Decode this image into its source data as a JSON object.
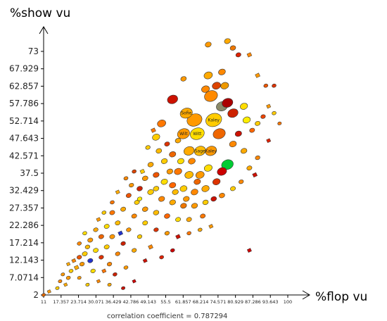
{
  "chart_data": {
    "type": "scatter",
    "xlabel": "%flop vu",
    "ylabel": "%show vu",
    "xlim": [
      11,
      104
    ],
    "ylim": [
      2,
      80
    ],
    "x_ticks": [
      "11",
      "17.357",
      "23.714",
      "30.071",
      "36.429",
      "42.786",
      "49.143",
      "55.5",
      "61.857",
      "68.214",
      "74.571",
      "80.929",
      "87.286",
      "93.643",
      "100"
    ],
    "y_ticks": [
      "2",
      "7.0714",
      "12.143",
      "17.214",
      "22.286",
      "27.357",
      "32.429",
      "37.5",
      "42.571",
      "47.643",
      "52.714",
      "57.786",
      "62.857",
      "67.929",
      "73"
    ],
    "annotation": "correlation coefficient = 0.787294",
    "colors": {
      "low": "#cc0000",
      "mid": "#ff8800",
      "high": "#ffee00",
      "green": "#00cc33",
      "blue": "#2233cc",
      "gray": "#8a8a6a"
    },
    "point_labels": [
      "Sofie",
      "Kaley",
      "Witt",
      "Sage",
      "Kaley",
      "Wilt"
    ],
    "points": [
      {
        "x": 66,
        "y": 53,
        "s": 3.2,
        "c": "#ff9900"
      },
      {
        "x": 72,
        "y": 60,
        "s": 2.8,
        "c": "#ff8a00"
      },
      {
        "x": 73,
        "y": 53,
        "s": 3.4,
        "c": "#ffcc00",
        "label": "Kaley"
      },
      {
        "x": 67,
        "y": 49,
        "s": 3.0,
        "c": "#ffdd00",
        "label": "Witt"
      },
      {
        "x": 62,
        "y": 49,
        "s": 2.6,
        "c": "#ff9900",
        "label": "Wilt"
      },
      {
        "x": 63,
        "y": 55,
        "s": 2.6,
        "c": "#ffaa00",
        "label": "Sofie"
      },
      {
        "x": 76,
        "y": 57,
        "s": 2.4,
        "c": "#8a8a6a"
      },
      {
        "x": 78,
        "y": 58,
        "s": 2.3,
        "c": "#aa0000"
      },
      {
        "x": 80,
        "y": 55,
        "s": 2.2,
        "c": "#cc2200"
      },
      {
        "x": 75,
        "y": 49,
        "s": 2.6,
        "c": "#ee6600"
      },
      {
        "x": 68,
        "y": 44,
        "s": 2.4,
        "c": "#ffbb00",
        "label": "Sage"
      },
      {
        "x": 72,
        "y": 44,
        "s": 2.4,
        "c": "#ff9900",
        "label": "Kaley"
      },
      {
        "x": 64,
        "y": 44,
        "s": 2.2,
        "c": "#ffaa00"
      },
      {
        "x": 78,
        "y": 40,
        "s": 2.5,
        "c": "#00cc33"
      },
      {
        "x": 76,
        "y": 38,
        "s": 2.0,
        "c": "#cc0000"
      },
      {
        "x": 58,
        "y": 59,
        "s": 2.2,
        "c": "#cc1100"
      },
      {
        "x": 54,
        "y": 52,
        "s": 1.8,
        "c": "#ff7700"
      },
      {
        "x": 52,
        "y": 48,
        "s": 1.6,
        "c": "#ffcc00"
      },
      {
        "x": 71,
        "y": 66,
        "s": 1.8,
        "c": "#ffaa00"
      },
      {
        "x": 74,
        "y": 63,
        "s": 1.8,
        "c": "#dd4400"
      },
      {
        "x": 70,
        "y": 62,
        "s": 1.7,
        "c": "#ff8800"
      },
      {
        "x": 77,
        "y": 63,
        "s": 1.7,
        "c": "#ee9900"
      },
      {
        "x": 76,
        "y": 67,
        "s": 1.5,
        "c": "#ff8800"
      },
      {
        "x": 71,
        "y": 75,
        "s": 1.3,
        "c": "#ff9900"
      },
      {
        "x": 78,
        "y": 76,
        "s": 1.3,
        "c": "#ffaa00"
      },
      {
        "x": 80,
        "y": 74,
        "s": 1.2,
        "c": "#ee7700"
      },
      {
        "x": 82,
        "y": 72,
        "s": 1.1,
        "c": "#dd2200"
      },
      {
        "x": 86,
        "y": 72,
        "s": 1.0,
        "c": "#ff8800"
      },
      {
        "x": 84,
        "y": 57,
        "s": 1.6,
        "c": "#ffdd00"
      },
      {
        "x": 85,
        "y": 53,
        "s": 1.6,
        "c": "#ffee00"
      },
      {
        "x": 82,
        "y": 49,
        "s": 1.4,
        "c": "#cc1100"
      },
      {
        "x": 80,
        "y": 46,
        "s": 1.5,
        "c": "#ff8800"
      },
      {
        "x": 84,
        "y": 44,
        "s": 1.3,
        "c": "#ffaa00"
      },
      {
        "x": 87,
        "y": 50,
        "s": 1.1,
        "c": "#ff6600"
      },
      {
        "x": 89,
        "y": 52,
        "s": 1.1,
        "c": "#ffcc00"
      },
      {
        "x": 91,
        "y": 54,
        "s": 1.0,
        "c": "#ee4400"
      },
      {
        "x": 93,
        "y": 57,
        "s": 0.9,
        "c": "#ff9900"
      },
      {
        "x": 95,
        "y": 55,
        "s": 0.9,
        "c": "#ffcc00"
      },
      {
        "x": 92,
        "y": 63,
        "s": 0.9,
        "c": "#ee5500"
      },
      {
        "x": 89,
        "y": 66,
        "s": 1.0,
        "c": "#ff9900"
      },
      {
        "x": 95,
        "y": 63,
        "s": 0.9,
        "c": "#dd3300"
      },
      {
        "x": 97,
        "y": 52,
        "s": 0.8,
        "c": "#ff7700"
      },
      {
        "x": 93,
        "y": 47,
        "s": 0.9,
        "c": "#dd2200"
      },
      {
        "x": 89,
        "y": 42,
        "s": 1.0,
        "c": "#ff8800"
      },
      {
        "x": 86,
        "y": 39,
        "s": 1.1,
        "c": "#ffaa00"
      },
      {
        "x": 88,
        "y": 37,
        "s": 1.0,
        "c": "#cc1100"
      },
      {
        "x": 83,
        "y": 35,
        "s": 1.0,
        "c": "#ff8800"
      },
      {
        "x": 80,
        "y": 33,
        "s": 1.1,
        "c": "#ffcc00"
      },
      {
        "x": 86,
        "y": 15,
        "s": 0.9,
        "c": "#cc0000"
      },
      {
        "x": 62,
        "y": 65,
        "s": 1.2,
        "c": "#ff9900"
      },
      {
        "x": 58,
        "y": 43,
        "s": 1.4,
        "c": "#ee6600"
      },
      {
        "x": 55,
        "y": 41,
        "s": 1.3,
        "c": "#ffcc00"
      },
      {
        "x": 60,
        "y": 38,
        "s": 1.6,
        "c": "#ff7700"
      },
      {
        "x": 64,
        "y": 37,
        "s": 1.8,
        "c": "#ffbb00"
      },
      {
        "x": 68,
        "y": 37,
        "s": 1.8,
        "c": "#ff9900"
      },
      {
        "x": 71,
        "y": 39,
        "s": 1.7,
        "c": "#ffdd00"
      },
      {
        "x": 74,
        "y": 35,
        "s": 1.6,
        "c": "#dd3300"
      },
      {
        "x": 70,
        "y": 33,
        "s": 1.6,
        "c": "#ffaa00"
      },
      {
        "x": 66,
        "y": 32,
        "s": 1.5,
        "c": "#ff8800"
      },
      {
        "x": 62,
        "y": 33,
        "s": 1.5,
        "c": "#ffcc00"
      },
      {
        "x": 58,
        "y": 34,
        "s": 1.4,
        "c": "#ff6600"
      },
      {
        "x": 55,
        "y": 35,
        "s": 1.4,
        "c": "#ffdd00"
      },
      {
        "x": 52,
        "y": 37,
        "s": 1.3,
        "c": "#ee5500"
      },
      {
        "x": 50,
        "y": 40,
        "s": 1.2,
        "c": "#ffaa00"
      },
      {
        "x": 48,
        "y": 36,
        "s": 1.2,
        "c": "#ff9900"
      },
      {
        "x": 46,
        "y": 33,
        "s": 1.2,
        "c": "#cc2200"
      },
      {
        "x": 50,
        "y": 32,
        "s": 1.3,
        "c": "#ffcc00"
      },
      {
        "x": 54,
        "y": 30,
        "s": 1.3,
        "c": "#ff8800"
      },
      {
        "x": 58,
        "y": 29,
        "s": 1.3,
        "c": "#ffaa00"
      },
      {
        "x": 62,
        "y": 28,
        "s": 1.3,
        "c": "#ee7700"
      },
      {
        "x": 66,
        "y": 28,
        "s": 1.3,
        "c": "#ff9900"
      },
      {
        "x": 70,
        "y": 29,
        "s": 1.2,
        "c": "#ffcc00"
      },
      {
        "x": 73,
        "y": 30,
        "s": 1.2,
        "c": "#cc1100"
      },
      {
        "x": 76,
        "y": 31,
        "s": 1.2,
        "c": "#ff8800"
      },
      {
        "x": 69,
        "y": 25,
        "s": 1.1,
        "c": "#ff7700"
      },
      {
        "x": 64,
        "y": 24,
        "s": 1.1,
        "c": "#ffaa00"
      },
      {
        "x": 60,
        "y": 24,
        "s": 1.1,
        "c": "#ffdd00"
      },
      {
        "x": 56,
        "y": 25,
        "s": 1.2,
        "c": "#ff6600"
      },
      {
        "x": 52,
        "y": 26,
        "s": 1.2,
        "c": "#ffbb00"
      },
      {
        "x": 48,
        "y": 27,
        "s": 1.2,
        "c": "#ff9900"
      },
      {
        "x": 45,
        "y": 29,
        "s": 1.1,
        "c": "#ffcc00"
      },
      {
        "x": 42,
        "y": 31,
        "s": 1.1,
        "c": "#ee5500"
      },
      {
        "x": 40,
        "y": 27,
        "s": 1.1,
        "c": "#ffaa00"
      },
      {
        "x": 44,
        "y": 25,
        "s": 1.1,
        "c": "#ff8800"
      },
      {
        "x": 48,
        "y": 23,
        "s": 1.1,
        "c": "#ffcc00"
      },
      {
        "x": 52,
        "y": 21,
        "s": 1.0,
        "c": "#dd3300"
      },
      {
        "x": 56,
        "y": 20,
        "s": 1.0,
        "c": "#ff9900"
      },
      {
        "x": 60,
        "y": 19,
        "s": 1.0,
        "c": "#cc1100"
      },
      {
        "x": 64,
        "y": 20,
        "s": 0.9,
        "c": "#ff7700"
      },
      {
        "x": 68,
        "y": 21,
        "s": 0.9,
        "c": "#ffaa00"
      },
      {
        "x": 72,
        "y": 22,
        "s": 0.9,
        "c": "#ff9900"
      },
      {
        "x": 58,
        "y": 15,
        "s": 0.9,
        "c": "#cc0000"
      },
      {
        "x": 54,
        "y": 13,
        "s": 0.9,
        "c": "#dd2200"
      },
      {
        "x": 50,
        "y": 16,
        "s": 1.0,
        "c": "#ff8800"
      },
      {
        "x": 46,
        "y": 19,
        "s": 1.0,
        "c": "#ffcc00"
      },
      {
        "x": 42,
        "y": 21,
        "s": 1.0,
        "c": "#ff9900"
      },
      {
        "x": 38,
        "y": 23,
        "s": 1.1,
        "c": "#ffbb00"
      },
      {
        "x": 36,
        "y": 26,
        "s": 1.1,
        "c": "#ff7700"
      },
      {
        "x": 34,
        "y": 22,
        "s": 1.1,
        "c": "#ffdd00"
      },
      {
        "x": 36,
        "y": 19,
        "s": 1.1,
        "c": "#ff9900"
      },
      {
        "x": 40,
        "y": 17,
        "s": 1.0,
        "c": "#cc2200"
      },
      {
        "x": 44,
        "y": 15,
        "s": 1.0,
        "c": "#ffaa00"
      },
      {
        "x": 48,
        "y": 12,
        "s": 0.9,
        "c": "#cc1100"
      },
      {
        "x": 38,
        "y": 14,
        "s": 1.0,
        "c": "#ff8800"
      },
      {
        "x": 34,
        "y": 16,
        "s": 1.1,
        "c": "#ffcc00"
      },
      {
        "x": 32,
        "y": 19,
        "s": 1.1,
        "c": "#ee6600"
      },
      {
        "x": 30,
        "y": 21,
        "s": 1.0,
        "c": "#ffaa00"
      },
      {
        "x": 28,
        "y": 18,
        "s": 1.1,
        "c": "#ff9900"
      },
      {
        "x": 30,
        "y": 15,
        "s": 1.1,
        "c": "#ffdd00"
      },
      {
        "x": 32,
        "y": 13,
        "s": 1.0,
        "c": "#dd3300"
      },
      {
        "x": 35,
        "y": 11,
        "s": 1.0,
        "c": "#ff8800"
      },
      {
        "x": 26,
        "y": 14,
        "s": 1.1,
        "c": "#ffcc00"
      },
      {
        "x": 28,
        "y": 12,
        "s": 1.1,
        "c": "#2233cc"
      },
      {
        "x": 25,
        "y": 11,
        "s": 1.0,
        "c": "#ff9900"
      },
      {
        "x": 23,
        "y": 10,
        "s": 1.0,
        "c": "#ffaa00"
      },
      {
        "x": 24,
        "y": 13,
        "s": 1.0,
        "c": "#ee5500"
      },
      {
        "x": 27,
        "y": 16,
        "s": 1.0,
        "c": "#ffbb00"
      },
      {
        "x": 22,
        "y": 12,
        "s": 0.9,
        "c": "#ff8800"
      },
      {
        "x": 21,
        "y": 9,
        "s": 0.9,
        "c": "#ffcc00"
      },
      {
        "x": 20,
        "y": 7,
        "s": 0.9,
        "c": "#ff9900"
      },
      {
        "x": 19,
        "y": 5,
        "s": 0.8,
        "c": "#ffaa00"
      },
      {
        "x": 17,
        "y": 6,
        "s": 0.8,
        "c": "#ff8800"
      },
      {
        "x": 16,
        "y": 4,
        "s": 0.8,
        "c": "#ffcc00"
      },
      {
        "x": 13,
        "y": 3,
        "s": 0.8,
        "c": "#ff9900"
      },
      {
        "x": 11,
        "y": 2,
        "s": 0.8,
        "c": "#dd6600"
      },
      {
        "x": 29,
        "y": 9,
        "s": 1.0,
        "c": "#ffdd00"
      },
      {
        "x": 33,
        "y": 9,
        "s": 0.9,
        "c": "#ff7700"
      },
      {
        "x": 37,
        "y": 8,
        "s": 0.9,
        "c": "#cc2200"
      },
      {
        "x": 41,
        "y": 10,
        "s": 0.9,
        "c": "#ff9900"
      },
      {
        "x": 44,
        "y": 6,
        "s": 0.8,
        "c": "#cc0000"
      },
      {
        "x": 40,
        "y": 4,
        "s": 0.8,
        "c": "#cc1100"
      },
      {
        "x": 35,
        "y": 5,
        "s": 0.8,
        "c": "#ffaa00"
      },
      {
        "x": 31,
        "y": 6,
        "s": 0.8,
        "c": "#ff8800"
      },
      {
        "x": 27,
        "y": 5,
        "s": 0.8,
        "c": "#ffcc00"
      },
      {
        "x": 24,
        "y": 7,
        "s": 0.8,
        "c": "#ff9900"
      },
      {
        "x": 39,
        "y": 20,
        "s": 1.0,
        "c": "#2233cc"
      },
      {
        "x": 46,
        "y": 30,
        "s": 1.0,
        "c": "#ffee00"
      },
      {
        "x": 43,
        "y": 34,
        "s": 1.0,
        "c": "#ff9900"
      },
      {
        "x": 47,
        "y": 38,
        "s": 1.0,
        "c": "#ffcc00"
      },
      {
        "x": 44,
        "y": 38,
        "s": 0.9,
        "c": "#dd4400"
      },
      {
        "x": 41,
        "y": 36,
        "s": 0.9,
        "c": "#ff8800"
      },
      {
        "x": 38,
        "y": 32,
        "s": 0.9,
        "c": "#ffaa00"
      },
      {
        "x": 36,
        "y": 29,
        "s": 0.9,
        "c": "#ff7700"
      },
      {
        "x": 33,
        "y": 26,
        "s": 0.9,
        "c": "#ffcc00"
      },
      {
        "x": 31,
        "y": 24,
        "s": 0.9,
        "c": "#ff9900"
      },
      {
        "x": 26,
        "y": 20,
        "s": 0.9,
        "c": "#ffdd00"
      },
      {
        "x": 24,
        "y": 17,
        "s": 0.9,
        "c": "#ff8800"
      },
      {
        "x": 20,
        "y": 11,
        "s": 0.8,
        "c": "#ffaa00"
      },
      {
        "x": 18,
        "y": 8,
        "s": 0.8,
        "c": "#ff9900"
      },
      {
        "x": 53,
        "y": 44,
        "s": 1.2,
        "c": "#ffbb00"
      },
      {
        "x": 51,
        "y": 50,
        "s": 1.0,
        "c": "#ff7700"
      },
      {
        "x": 49,
        "y": 45,
        "s": 1.0,
        "c": "#ffcc00"
      },
      {
        "x": 56,
        "y": 46,
        "s": 1.1,
        "c": "#dd3300"
      },
      {
        "x": 60,
        "y": 47,
        "s": 1.2,
        "c": "#ffaa00"
      },
      {
        "x": 57,
        "y": 38,
        "s": 1.3,
        "c": "#ff9900"
      },
      {
        "x": 61,
        "y": 41,
        "s": 1.4,
        "c": "#ffdd00"
      },
      {
        "x": 65,
        "y": 41,
        "s": 1.5,
        "c": "#ff8800"
      },
      {
        "x": 52,
        "y": 33,
        "s": 1.2,
        "c": "#ffcc00"
      },
      {
        "x": 67,
        "y": 35,
        "s": 1.4,
        "c": "#ee6600"
      },
      {
        "x": 63,
        "y": 30,
        "s": 1.3,
        "c": "#ff9900"
      },
      {
        "x": 59,
        "y": 32,
        "s": 1.3,
        "c": "#ffbb00"
      }
    ]
  }
}
